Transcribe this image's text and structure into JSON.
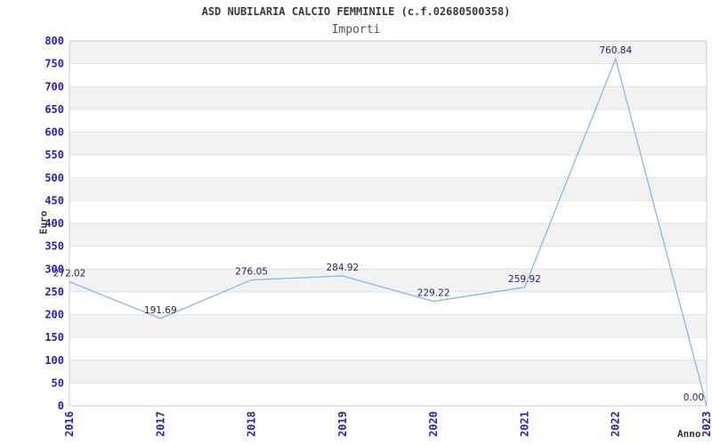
{
  "header": {
    "title": "ASD NUBILARIA CALCIO FEMMINILE (c.f.02680500358)",
    "subtitle": "Importi"
  },
  "chart_data": {
    "type": "line",
    "title": "ASD NUBILARIA CALCIO FEMMINILE (c.f.02680500358)",
    "subtitle": "Importi",
    "xlabel": "Anno",
    "ylabel": "Euro",
    "categories": [
      "2016",
      "2017",
      "2018",
      "2019",
      "2020",
      "2021",
      "2022",
      "2023"
    ],
    "values": [
      272.02,
      191.69,
      276.05,
      284.92,
      229.22,
      259.92,
      760.84,
      0
    ],
    "data_labels": [
      "272.02",
      "191.69",
      "276.05",
      "284.92",
      "229.22",
      "259.92",
      "760.84",
      "0.00"
    ],
    "ylim": [
      0,
      800
    ],
    "y_tick_step": 50,
    "y_ticks": [
      0,
      50,
      100,
      150,
      200,
      250,
      300,
      350,
      400,
      450,
      500,
      550,
      600,
      650,
      700,
      750,
      800
    ],
    "grid": true,
    "legend": false,
    "banded_background": true,
    "colors": {
      "line": "#8ab6e8",
      "tick_label": "#2222cc",
      "data_label": "#232366",
      "band_gray": "#f2f2f2",
      "gridline": "#e2e2e2",
      "plot_border": "#cccccc",
      "title": "#3a3a3a",
      "subtitle": "#555555",
      "axis_label": "#333333"
    }
  }
}
